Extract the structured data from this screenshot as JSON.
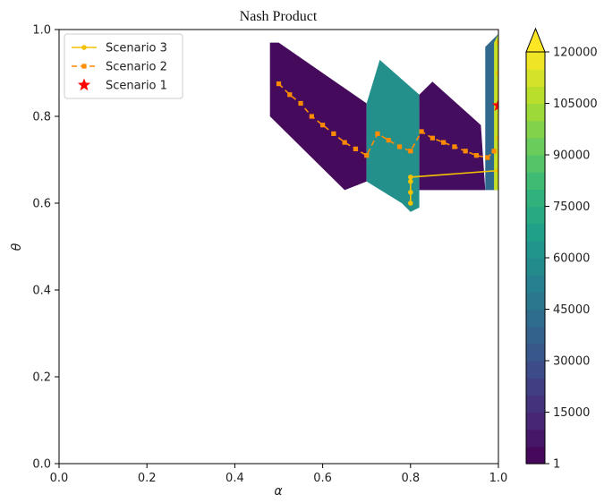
{
  "chart_data": {
    "type": "heatmap",
    "title": "Nash Product",
    "xlabel": "α",
    "ylabel": "θ",
    "xlim": [
      0.0,
      1.0
    ],
    "ylim": [
      0.0,
      1.0
    ],
    "x_ticks": [
      "0.0",
      "0.2",
      "0.4",
      "0.6",
      "0.8",
      "1.0"
    ],
    "y_ticks": [
      "0.0",
      "0.2",
      "0.4",
      "0.6",
      "0.8",
      "1.0"
    ],
    "grid": false,
    "legend_position": "top-left",
    "colormap": "viridis",
    "colorbar": {
      "min": 1,
      "max": 120000,
      "extend": "max",
      "levels": 24,
      "tick_labels": [
        "1",
        "15000",
        "30000",
        "45000",
        "60000",
        "75000",
        "90000",
        "105000",
        "120000"
      ]
    },
    "heatmap_regions": [
      {
        "polygon": [
          [
            0.48,
            0.97
          ],
          [
            0.5,
            0.97
          ],
          [
            0.7,
            0.83
          ],
          [
            0.7,
            0.65
          ],
          [
            0.65,
            0.63
          ],
          [
            0.48,
            0.8
          ]
        ],
        "value": 3000
      },
      {
        "polygon": [
          [
            0.7,
            0.83
          ],
          [
            0.73,
            0.93
          ],
          [
            0.82,
            0.85
          ],
          [
            0.82,
            0.59
          ],
          [
            0.8,
            0.58
          ],
          [
            0.78,
            0.6
          ],
          [
            0.7,
            0.65
          ]
        ],
        "value": 60000
      },
      {
        "polygon": [
          [
            0.82,
            0.85
          ],
          [
            0.85,
            0.88
          ],
          [
            0.96,
            0.78
          ],
          [
            0.97,
            0.63
          ],
          [
            0.82,
            0.63
          ]
        ],
        "value": 4000
      },
      {
        "polygon": [
          [
            0.97,
            0.96
          ],
          [
            1.0,
            0.99
          ],
          [
            1.0,
            0.63
          ],
          [
            0.97,
            0.63
          ]
        ],
        "value": 40000
      },
      {
        "polygon": [
          [
            0.99,
            0.97
          ],
          [
            1.0,
            0.99
          ],
          [
            1.0,
            0.63
          ],
          [
            0.99,
            0.63
          ]
        ],
        "value": 110000
      }
    ],
    "series": [
      {
        "name": "Scenario 3",
        "style": "solid",
        "marker": "circle",
        "color": "#f2c200",
        "x": [
          0.8,
          0.8,
          0.8,
          0.8,
          1.0,
          1.0,
          1.0,
          1.0,
          1.0
        ],
        "y": [
          0.6,
          0.625,
          0.65,
          0.66,
          0.675,
          0.75,
          0.82,
          0.9,
          0.97
        ]
      },
      {
        "name": "Scenario 2",
        "style": "dashed",
        "marker": "square",
        "color": "#ff8c00",
        "x": [
          0.5,
          0.525,
          0.55,
          0.575,
          0.6,
          0.625,
          0.65,
          0.675,
          0.7,
          0.725,
          0.75,
          0.775,
          0.8,
          0.825,
          0.85,
          0.875,
          0.9,
          0.925,
          0.95,
          0.975,
          0.99
        ],
        "y": [
          0.875,
          0.85,
          0.83,
          0.8,
          0.78,
          0.76,
          0.74,
          0.725,
          0.71,
          0.76,
          0.745,
          0.73,
          0.72,
          0.765,
          0.75,
          0.74,
          0.73,
          0.72,
          0.71,
          0.705,
          0.72
        ]
      },
      {
        "name": "Scenario 1",
        "style": "none",
        "marker": "star",
        "color": "#ff0000",
        "x": [
          1.0
        ],
        "y": [
          0.825
        ]
      }
    ]
  }
}
